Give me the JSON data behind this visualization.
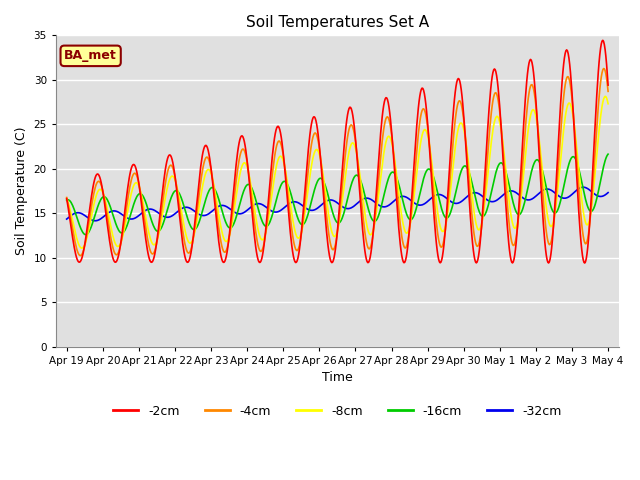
{
  "title": "Soil Temperatures Set A",
  "xlabel": "Time",
  "ylabel": "Soil Temperature (C)",
  "ylim": [
    0,
    35
  ],
  "yticks": [
    0,
    5,
    10,
    15,
    20,
    25,
    30,
    35
  ],
  "colors": {
    "-2cm": "#FF0000",
    "-4cm": "#FF8800",
    "-8cm": "#FFFF00",
    "-16cm": "#00CC00",
    "-32cm": "#0000EE"
  },
  "legend_labels": [
    "-2cm",
    "-4cm",
    "-8cm",
    "-16cm",
    "-32cm"
  ],
  "annotation_text": "BA_met",
  "annotation_bg": "#FFFF99",
  "annotation_border": "#8B0000",
  "plot_bg": "#E0E0E0",
  "fig_bg": "#FFFFFF",
  "x_tick_labels": [
    "Apr 19",
    "Apr 20",
    "Apr 21",
    "Apr 22",
    "Apr 23",
    "Apr 24",
    "Apr 25",
    "Apr 26",
    "Apr 27",
    "Apr 28",
    "Apr 29",
    "Apr 30",
    "May 1",
    "May 2",
    "May 3",
    "May 4"
  ],
  "line_width": 1.2,
  "trend_starts": {
    "-2cm": 14.0,
    "-4cm": 14.0,
    "-8cm": 14.0,
    "-16cm": 14.5,
    "-32cm": 14.5
  },
  "trend_ends": {
    "-2cm": 22.0,
    "-4cm": 21.5,
    "-8cm": 21.0,
    "-16cm": 18.5,
    "-32cm": 17.5
  },
  "base_amps": {
    "-2cm": 4.5,
    "-4cm": 3.8,
    "-8cm": 3.0,
    "-16cm": 2.0,
    "-32cm": 0.5
  },
  "amp_growth": {
    "-2cm": 1.8,
    "-4cm": 1.6,
    "-8cm": 1.4,
    "-16cm": 0.6,
    "-32cm": 0.15
  },
  "phase_shifts": {
    "-2cm": 0.0,
    "-4cm": 0.03,
    "-8cm": 0.07,
    "-16cm": 0.18,
    "-32cm": 0.45
  },
  "n_days": 15,
  "points_per_day": 48
}
